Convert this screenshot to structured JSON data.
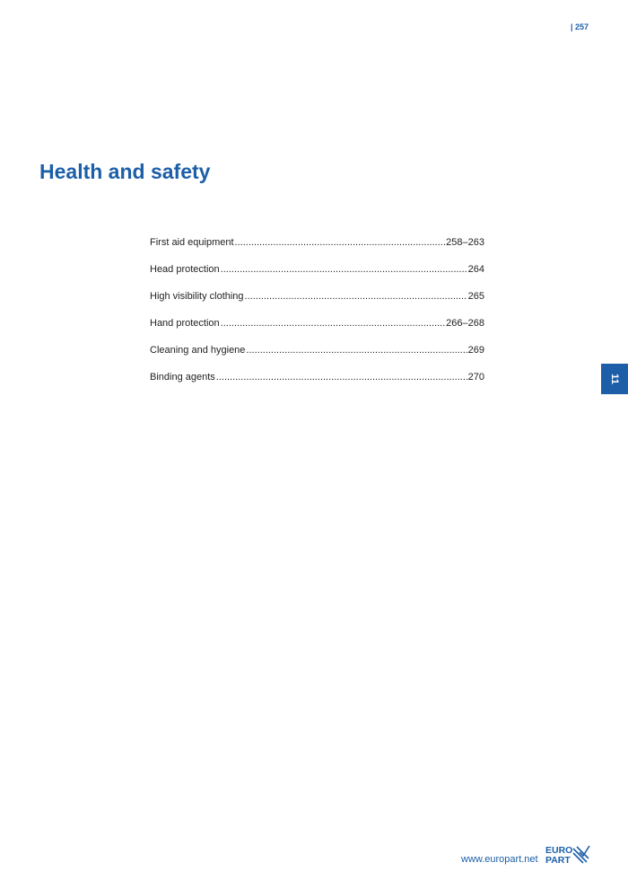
{
  "header": {
    "page_number": "| 257"
  },
  "title": "Health and safety",
  "toc": [
    {
      "label": "First aid equipment",
      "pages": "258–263"
    },
    {
      "label": "Head protection",
      "pages": "264"
    },
    {
      "label": "High visibility clothing",
      "pages": "265"
    },
    {
      "label": "Hand protection",
      "pages": "266–268"
    },
    {
      "label": "Cleaning and hygiene",
      "pages": "269"
    },
    {
      "label": "Binding agents",
      "pages": "270"
    }
  ],
  "chapter_tab": "11",
  "footer": {
    "url": "www.europart.net",
    "logo_text": "EURO PART"
  },
  "colors": {
    "brand": "#1c5fa8"
  }
}
